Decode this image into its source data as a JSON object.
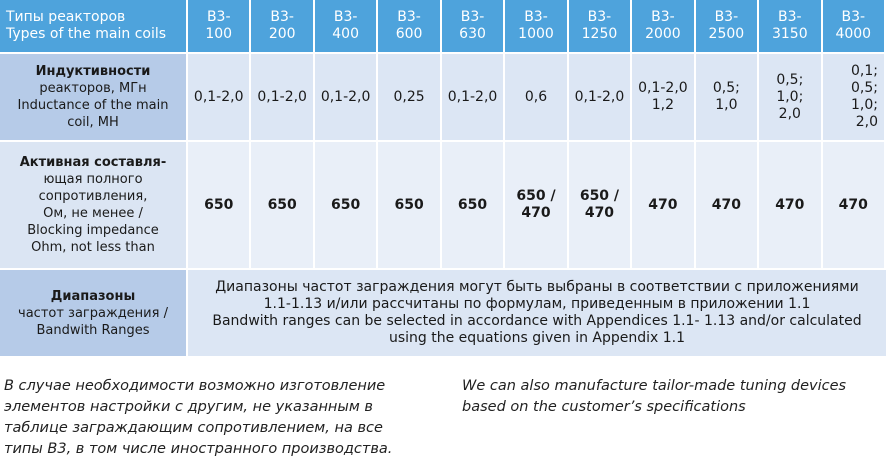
{
  "table": {
    "header": {
      "label": [
        "Типы реакторов",
        "Types of the main coils"
      ],
      "columns": [
        [
          "В3-",
          "100"
        ],
        [
          "В3-",
          "200"
        ],
        [
          "В3-",
          "400"
        ],
        [
          "В3-",
          "600"
        ],
        [
          "В3-",
          "630"
        ],
        [
          "В3-",
          "1000"
        ],
        [
          "В3-",
          "1250"
        ],
        [
          "В3-",
          "2000"
        ],
        [
          "В3-",
          "2500"
        ],
        [
          "В3-",
          "3150"
        ],
        [
          "В3-",
          "4000"
        ]
      ]
    },
    "rows": [
      {
        "label": [
          "Индуктивности",
          "реакторов, МГн",
          "Inductance of the main",
          "coil, МН"
        ],
        "cells": [
          [
            "0,1-2,0"
          ],
          [
            "0,1-2,0"
          ],
          [
            "0,1-2,0"
          ],
          [
            "0,25"
          ],
          [
            "0,1-2,0"
          ],
          [
            "0,6"
          ],
          [
            "0,1-2,0"
          ],
          [
            "0,1-2,0",
            "1,2"
          ],
          [
            "0,5;",
            "1,0"
          ],
          [
            "0,5;",
            "1,0;",
            "2,0"
          ],
          [
            "0,1;",
            "0,5;",
            "1,0;",
            "2,0"
          ]
        ]
      },
      {
        "label": [
          "Активная составля-",
          "ющая полного",
          "сопротивления,",
          "Ом, не менее /",
          "Blocking impedance",
          "Ohm, not less than"
        ],
        "cells": [
          [
            "650"
          ],
          [
            "650"
          ],
          [
            "650"
          ],
          [
            "650"
          ],
          [
            "650"
          ],
          [
            "650 /",
            "470"
          ],
          [
            "650 /",
            "470"
          ],
          [
            "470"
          ],
          [
            "470"
          ],
          [
            "470"
          ],
          [
            "470"
          ]
        ]
      },
      {
        "label": [
          "Диапазоны",
          "частот заграждения /",
          "Bandwith Ranges"
        ],
        "merged": [
          "Диапазоны частот заграждения могут быть выбраны в соответствии с приложениями",
          "1.1-1.13 и/или рассчитаны по формулам, приведенным в приложении 1.1",
          "Bandwith ranges can be selected in accordance with Appendices 1.1- 1.13 and/or calculated",
          "using the equations given in Appendix 1.1"
        ]
      }
    ]
  },
  "notes": {
    "ru": [
      "В случае необходимости возможно изготовление",
      "элементов настройки с другим, не указанным в",
      "таблице заграждающим сопротивлением, на все",
      "типы В3, в том числе иностранного производства."
    ],
    "en": [
      "We can also manufacture tailor-made tuning devices",
      "based on the customer’s specifications"
    ]
  }
}
